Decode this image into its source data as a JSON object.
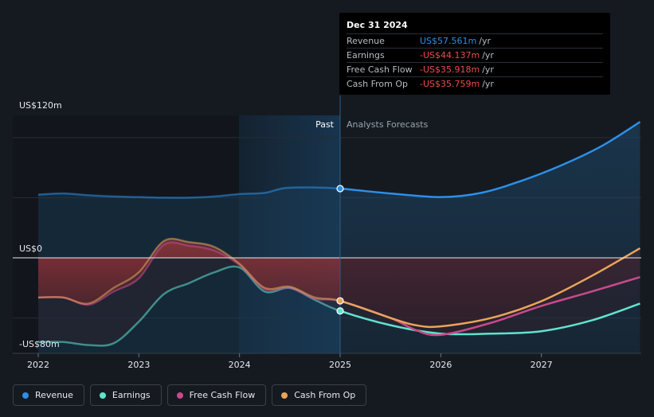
{
  "tooltip": {
    "date": "Dec 31 2024",
    "rows": [
      {
        "name": "Revenue",
        "value": "US$57.561m",
        "unit": "/yr",
        "color": "#2f8fe0"
      },
      {
        "name": "Earnings",
        "value": "-US$44.137m",
        "unit": "/yr",
        "color": "#f04b4b"
      },
      {
        "name": "Free Cash Flow",
        "value": "-US$35.918m",
        "unit": "/yr",
        "color": "#f04b4b"
      },
      {
        "name": "Cash From Op",
        "value": "-US$35.759m",
        "unit": "/yr",
        "color": "#f04b4b"
      }
    ]
  },
  "legend": [
    {
      "label": "Revenue",
      "color": "#2d8fe6"
    },
    {
      "label": "Earnings",
      "color": "#5fe3cf"
    },
    {
      "label": "Free Cash Flow",
      "color": "#c84a8c"
    },
    {
      "label": "Cash From Op",
      "color": "#e8a55a"
    }
  ],
  "chart_data": {
    "type": "line",
    "units": "US$ millions",
    "y_labels": {
      "top": "US$120m",
      "zero": "US$0",
      "bottom": "-US$80m"
    },
    "ylim": [
      -80,
      120
    ],
    "xlim": [
      2021.98,
      2027.98
    ],
    "x_ticks": [
      {
        "value": 2022,
        "label": "2022"
      },
      {
        "value": 2023,
        "label": "2023"
      },
      {
        "value": 2024,
        "label": "2024"
      },
      {
        "value": 2025,
        "label": "2025"
      },
      {
        "value": 2026,
        "label": "2026"
      },
      {
        "value": 2027,
        "label": "2027"
      }
    ],
    "divider_x": 2025.0,
    "past_label": "Past",
    "forecast_label": "Analysts Forecasts",
    "series": [
      {
        "name": "Revenue",
        "color": "#2d8fe6",
        "fill": "area",
        "points": [
          [
            2022.0,
            52.5
          ],
          [
            2022.25,
            53.5
          ],
          [
            2022.5,
            52
          ],
          [
            2022.75,
            51
          ],
          [
            2023.0,
            50.5
          ],
          [
            2023.25,
            50
          ],
          [
            2023.5,
            50
          ],
          [
            2023.75,
            51
          ],
          [
            2024.0,
            53
          ],
          [
            2024.25,
            54
          ],
          [
            2024.45,
            58
          ],
          [
            2024.75,
            58.5
          ],
          [
            2025.0,
            57.56
          ],
          [
            2025.5,
            53.5
          ],
          [
            2026.0,
            50.5
          ],
          [
            2026.4,
            54
          ],
          [
            2026.8,
            64
          ],
          [
            2027.2,
            77
          ],
          [
            2027.6,
            93
          ],
          [
            2027.98,
            113
          ]
        ]
      },
      {
        "name": "Earnings",
        "color": "#5fe3cf",
        "fill": "neg",
        "points": [
          [
            2022.0,
            -70
          ],
          [
            2022.25,
            -70
          ],
          [
            2022.5,
            -72.5
          ],
          [
            2022.75,
            -71
          ],
          [
            2023.0,
            -53
          ],
          [
            2023.25,
            -30
          ],
          [
            2023.5,
            -21
          ],
          [
            2023.75,
            -12
          ],
          [
            2024.0,
            -8
          ],
          [
            2024.25,
            -28
          ],
          [
            2024.5,
            -25
          ],
          [
            2024.75,
            -35
          ],
          [
            2025.0,
            -44.14
          ],
          [
            2025.5,
            -56
          ],
          [
            2026.0,
            -63
          ],
          [
            2026.5,
            -63
          ],
          [
            2027.0,
            -61
          ],
          [
            2027.5,
            -52
          ],
          [
            2027.98,
            -38
          ]
        ]
      },
      {
        "name": "Free Cash Flow",
        "color": "#c84a8c",
        "fill": "neg",
        "points": [
          [
            2022.0,
            -33
          ],
          [
            2022.25,
            -33
          ],
          [
            2022.5,
            -39
          ],
          [
            2022.75,
            -28
          ],
          [
            2023.0,
            -17
          ],
          [
            2023.25,
            11
          ],
          [
            2023.5,
            10
          ],
          [
            2023.75,
            6
          ],
          [
            2024.0,
            -6
          ],
          [
            2024.25,
            -26
          ],
          [
            2024.5,
            -25
          ],
          [
            2024.75,
            -34
          ],
          [
            2025.0,
            -35.92
          ],
          [
            2025.5,
            -50
          ],
          [
            2025.75,
            -60
          ],
          [
            2026.0,
            -64
          ],
          [
            2026.5,
            -54
          ],
          [
            2027.0,
            -40
          ],
          [
            2027.5,
            -28
          ],
          [
            2027.98,
            -16
          ]
        ]
      },
      {
        "name": "Cash From Op",
        "color": "#e8a55a",
        "fill": "neg",
        "points": [
          [
            2022.0,
            -33
          ],
          [
            2022.25,
            -33
          ],
          [
            2022.5,
            -38
          ],
          [
            2022.75,
            -25
          ],
          [
            2023.0,
            -12
          ],
          [
            2023.25,
            14
          ],
          [
            2023.5,
            13
          ],
          [
            2023.75,
            9
          ],
          [
            2024.0,
            -5
          ],
          [
            2024.25,
            -25
          ],
          [
            2024.5,
            -24
          ],
          [
            2024.75,
            -33
          ],
          [
            2025.0,
            -35.76
          ],
          [
            2025.5,
            -50
          ],
          [
            2025.75,
            -56
          ],
          [
            2026.0,
            -57
          ],
          [
            2026.5,
            -50
          ],
          [
            2027.0,
            -36
          ],
          [
            2027.5,
            -15
          ],
          [
            2027.98,
            8
          ]
        ]
      }
    ],
    "highlight_x": 2025.0
  }
}
